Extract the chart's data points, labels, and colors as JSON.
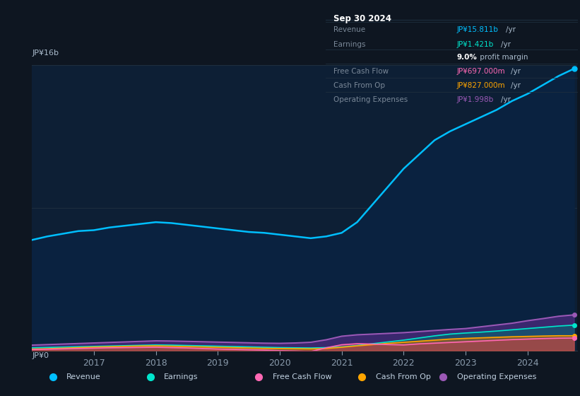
{
  "bg_color": "#0e1621",
  "plot_bg_color": "#0d1f35",
  "ylabel_top": "JP¥16b",
  "ylabel_bottom": "JP¥0",
  "x_years": [
    2016.0,
    2016.25,
    2016.5,
    2016.75,
    2017.0,
    2017.25,
    2017.5,
    2017.75,
    2018.0,
    2018.25,
    2018.5,
    2018.75,
    2019.0,
    2019.25,
    2019.5,
    2019.75,
    2020.0,
    2020.25,
    2020.5,
    2020.75,
    2021.0,
    2021.25,
    2021.5,
    2021.75,
    2022.0,
    2022.25,
    2022.5,
    2022.75,
    2023.0,
    2023.25,
    2023.5,
    2023.75,
    2024.0,
    2024.25,
    2024.5,
    2024.75
  ],
  "revenue": [
    6200,
    6400,
    6550,
    6700,
    6750,
    6900,
    7000,
    7100,
    7200,
    7150,
    7050,
    6950,
    6850,
    6750,
    6650,
    6600,
    6500,
    6400,
    6300,
    6400,
    6600,
    7200,
    8200,
    9200,
    10200,
    11000,
    11800,
    12300,
    12700,
    13100,
    13500,
    14000,
    14400,
    14900,
    15400,
    15811
  ],
  "earnings": [
    150,
    170,
    190,
    210,
    230,
    250,
    270,
    290,
    310,
    300,
    280,
    260,
    240,
    220,
    200,
    180,
    160,
    150,
    140,
    160,
    200,
    280,
    380,
    480,
    580,
    700,
    820,
    920,
    980,
    1030,
    1090,
    1160,
    1230,
    1300,
    1370,
    1421
  ],
  "free_cash_flow": [
    50,
    70,
    90,
    110,
    130,
    150,
    160,
    170,
    180,
    160,
    140,
    110,
    80,
    60,
    40,
    20,
    -10,
    -30,
    -60,
    150,
    320,
    380,
    360,
    330,
    310,
    370,
    410,
    450,
    490,
    530,
    570,
    610,
    640,
    670,
    690,
    697
  ],
  "cash_from_op": [
    80,
    100,
    130,
    160,
    190,
    210,
    230,
    250,
    260,
    240,
    220,
    200,
    180,
    160,
    140,
    120,
    110,
    100,
    90,
    110,
    180,
    260,
    330,
    400,
    460,
    520,
    580,
    640,
    680,
    710,
    740,
    770,
    790,
    810,
    827,
    827
  ],
  "operating_expenses": [
    300,
    330,
    360,
    390,
    420,
    450,
    480,
    510,
    540,
    530,
    510,
    490,
    470,
    450,
    430,
    410,
    400,
    420,
    460,
    600,
    800,
    880,
    920,
    960,
    1000,
    1060,
    1120,
    1180,
    1230,
    1330,
    1430,
    1530,
    1670,
    1790,
    1920,
    1998
  ],
  "revenue_color": "#00bfff",
  "earnings_color": "#00e5cc",
  "fcf_color": "#ff69b4",
  "cashop_color": "#ffa500",
  "opex_color": "#9b59b6",
  "revenue_fill": "#0a2a4a",
  "x_ticks": [
    2017,
    2018,
    2019,
    2020,
    2021,
    2022,
    2023,
    2024
  ],
  "info_box": {
    "title": "Sep 30 2024",
    "rows": [
      {
        "label": "Revenue",
        "value": "JP¥15.811b",
        "unit": "/yr",
        "color": "#00bfff"
      },
      {
        "label": "Earnings",
        "value": "JP¥1.421b",
        "unit": "/yr",
        "color": "#00e5cc"
      },
      {
        "label": "",
        "value": "9.0%",
        "unit": " profit margin",
        "color": "#ffffff",
        "bold_value": true
      },
      {
        "label": "Free Cash Flow",
        "value": "JP¥697.000m",
        "unit": "/yr",
        "color": "#ff69b4"
      },
      {
        "label": "Cash From Op",
        "value": "JP¥827.000m",
        "unit": "/yr",
        "color": "#ffa500"
      },
      {
        "label": "Operating Expenses",
        "value": "JP¥1.998b",
        "unit": "/yr",
        "color": "#9b59b6"
      }
    ]
  },
  "legend_items": [
    {
      "label": "Revenue",
      "color": "#00bfff"
    },
    {
      "label": "Earnings",
      "color": "#00e5cc"
    },
    {
      "label": "Free Cash Flow",
      "color": "#ff69b4"
    },
    {
      "label": "Cash From Op",
      "color": "#ffa500"
    },
    {
      "label": "Operating Expenses",
      "color": "#9b59b6"
    }
  ]
}
